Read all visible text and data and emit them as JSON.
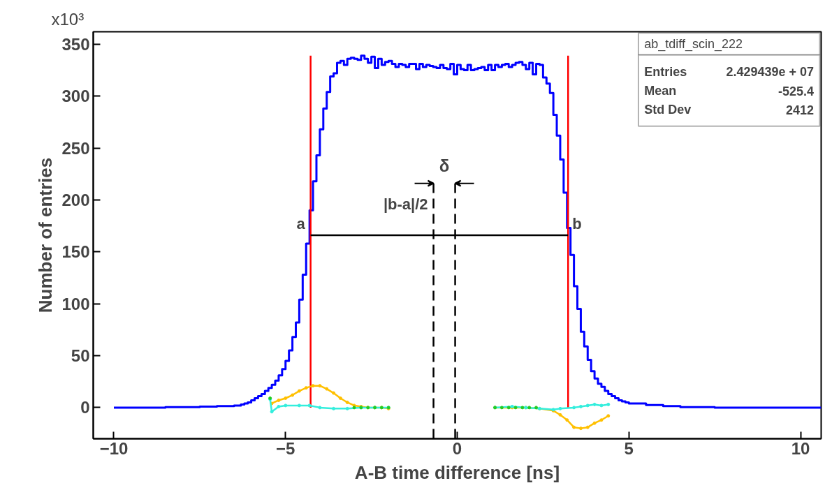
{
  "chart_data": {
    "type": "histogram",
    "xlabel": "A-B time difference [ns]",
    "ylabel": "Number of entries",
    "xlim": [
      -10.6,
      10.6
    ],
    "ylim": [
      -30,
      362
    ],
    "xticks": [
      -10,
      -5,
      0,
      5,
      10
    ],
    "yticks": [
      0,
      50,
      100,
      150,
      200,
      250,
      300,
      350
    ],
    "grid": false,
    "color": "#0000ff",
    "bins": [
      -10,
      -8.5,
      -7.5,
      -7,
      -6.5,
      -6.4,
      -6.3,
      -6.2,
      -6.1,
      -6.0,
      -5.9,
      -5.8,
      -5.7,
      -5.6,
      -5.5,
      -5.4,
      -5.3,
      -5.2,
      -5.1,
      -5.0,
      -4.9,
      -4.8,
      -4.7,
      -4.6,
      -4.5,
      -4.4,
      -4.3,
      -4.2,
      -4.1,
      -4.0,
      -3.9,
      -3.8,
      -3.7,
      -3.6,
      -3.5,
      -3.4,
      -3.3,
      -3.2,
      -3.1,
      -3.0,
      -2.9,
      -2.8,
      -2.7,
      -2.6,
      -2.5,
      -2.4,
      -2.3,
      -2.2,
      -2.1,
      -2.0,
      -1.9,
      -1.8,
      -1.7,
      -1.6,
      -1.5,
      -1.4,
      -1.3,
      -1.2,
      -1.1,
      -1.0,
      -0.9,
      -0.8,
      -0.7,
      -0.6,
      -0.5,
      -0.4,
      -0.3,
      -0.2,
      -0.1,
      0.0,
      0.1,
      0.2,
      0.3,
      0.4,
      0.5,
      0.6,
      0.7,
      0.8,
      0.9,
      1.0,
      1.1,
      1.2,
      1.3,
      1.4,
      1.5,
      1.6,
      1.7,
      1.8,
      1.9,
      2.0,
      2.1,
      2.2,
      2.3,
      2.4,
      2.5,
      2.6,
      2.7,
      2.8,
      2.9,
      3.0,
      3.1,
      3.2,
      3.3,
      3.4,
      3.5,
      3.6,
      3.7,
      3.8,
      3.9,
      4.0,
      4.1,
      4.2,
      4.3,
      4.4,
      4.5,
      4.6,
      4.7,
      4.8,
      4.9,
      5.0,
      5.5,
      6.0,
      6.5,
      7.5,
      10.6
    ],
    "values": [
      0,
      0.5,
      1,
      1.5,
      2,
      2,
      3,
      4,
      5,
      7,
      9,
      11,
      13,
      16,
      19,
      22,
      26,
      31,
      37,
      45,
      55,
      68,
      82,
      104,
      128,
      158,
      190,
      218,
      243,
      268,
      288,
      304,
      319,
      322,
      332,
      334,
      330,
      336,
      337,
      336,
      335,
      339,
      336,
      332,
      338,
      327,
      336,
      330,
      333,
      334,
      331,
      328,
      331,
      330,
      328,
      331,
      331,
      326,
      331,
      328,
      330,
      329,
      328,
      327,
      330,
      327,
      326,
      331,
      321,
      330,
      326,
      325,
      330,
      325,
      326,
      327,
      328,
      325,
      330,
      325,
      330,
      328,
      330,
      331,
      328,
      330,
      332,
      333,
      330,
      326,
      332,
      321,
      331,
      330,
      318,
      312,
      303,
      282,
      262,
      239,
      207,
      173,
      147,
      117,
      95,
      73,
      59,
      46,
      35,
      28,
      23,
      20,
      16,
      13,
      11,
      9,
      7,
      6,
      5,
      4,
      2.5,
      1.5,
      0.5,
      0
    ],
    "series": [
      {
        "type": "line",
        "color": "#ff0000",
        "x": [
          -4.27,
          -4.27
        ],
        "values": [
          0,
          339
        ]
      },
      {
        "type": "line",
        "color": "#ff0000",
        "x": [
          3.23,
          3.23
        ],
        "values": [
          0,
          339
        ]
      },
      {
        "type": "line",
        "color": "#000000",
        "x": [
          -4.27,
          3.23
        ],
        "values": [
          166,
          166
        ]
      },
      {
        "type": "line",
        "color": "#000000",
        "line_style": "dashed",
        "x": [
          -0.69,
          -0.69
        ],
        "values": [
          -30,
          216
        ]
      },
      {
        "type": "line",
        "color": "#000000",
        "line_style": "dashed",
        "x": [
          -0.06,
          -0.06
        ],
        "values": [
          -30,
          216
        ]
      },
      {
        "type": "line",
        "color": "#ffc000",
        "marker": "circle",
        "x": [
          -5.4,
          -5.2,
          -5.0,
          -4.8,
          -4.6,
          -4.4,
          -4.2,
          -4.0,
          -3.8,
          -3.6,
          -3.4,
          -3.2,
          -3.0,
          -2.8,
          -2.6,
          -2.4,
          -2.2,
          -2.0,
          -0.5,
          1.1,
          1.6,
          2.0,
          2.4,
          2.8,
          3.0,
          3.2,
          3.4,
          3.6,
          3.8,
          4.0,
          4.2,
          4.4
        ],
        "values": [
          4,
          7,
          9,
          12,
          16,
          19,
          21,
          21,
          18,
          14,
          9,
          5,
          2,
          1,
          0,
          0,
          0,
          -1,
          null,
          0,
          0,
          0,
          -1,
          -3,
          -7,
          -12,
          -19,
          -20,
          -19,
          -15,
          -12,
          -8
        ]
      },
      {
        "type": "line",
        "color": "#33eedd",
        "marker": "circle",
        "x": [
          -5.45,
          -5.4,
          -5.2,
          -5.0,
          -4.6,
          -4.3,
          -4.0,
          -3.6,
          -3.2,
          -2.8,
          -2.4,
          -2.0,
          -0.5,
          1.1,
          1.6,
          2.0,
          2.4,
          2.8,
          3.0,
          3.4,
          3.6,
          3.8,
          4.0,
          4.2,
          4.4
        ],
        "values": [
          8,
          -4,
          1,
          2,
          2,
          2,
          0,
          -1,
          -1,
          0,
          0,
          0,
          null,
          0,
          1,
          0,
          -1,
          -2,
          -1,
          0,
          1,
          2,
          3,
          2,
          3
        ]
      },
      {
        "type": "scatter",
        "color": "#22cc22",
        "marker": "circle",
        "x": [
          -5.45,
          -3.0,
          -2.8,
          -2.6,
          -2.4,
          -2.2,
          -2.0,
          1.1,
          1.3,
          1.5,
          1.7,
          1.9,
          2.1,
          2.3
        ],
        "values": [
          9,
          0,
          0,
          0,
          0,
          0,
          0,
          0,
          0,
          0,
          0,
          0,
          0,
          0
        ]
      }
    ],
    "annotations": [
      "x10³",
      {
        "text": "a",
        "x": -4.27,
        "y": 166
      },
      {
        "text": "b",
        "x": 3.23,
        "y": 166
      },
      {
        "text": "|b-a|/2",
        "x": -0.69,
        "y": 185
      },
      "δ",
      "ab_tdiff_scin_222",
      "Entries",
      "2.429439e + 07",
      "Mean",
      "-525.4",
      "Std Dev",
      "2412"
    ]
  }
}
